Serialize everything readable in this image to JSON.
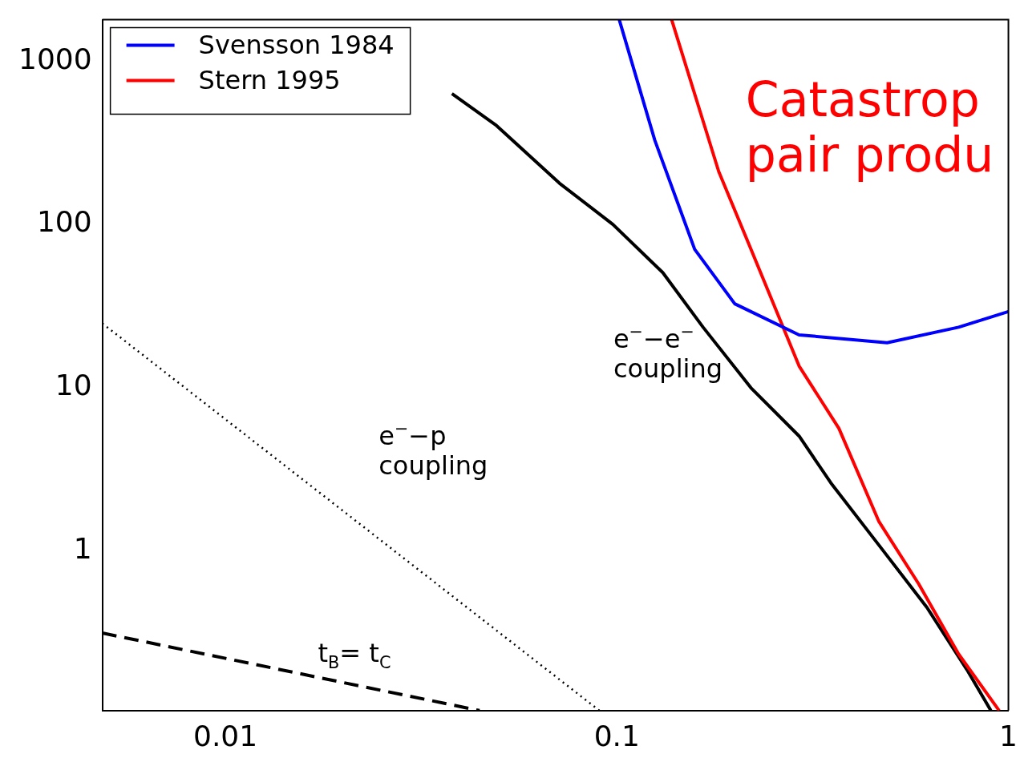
{
  "chart_data": {
    "type": "line",
    "log": "xy",
    "xlim": [
      0.00485,
      1.0
    ],
    "ylim": [
      0.106,
      1790
    ],
    "xticks": [
      0.01,
      0.1,
      1
    ],
    "yticks": [
      1,
      10,
      100,
      1000
    ],
    "grid": false,
    "legend": "top left",
    "marker": "none",
    "series": [
      {
        "name": "Svensson 1984",
        "color": "#0000ff",
        "x": [
          0.1014,
          0.125,
          0.158,
          0.2,
          0.292,
          0.49,
          0.746,
          1.0
        ],
        "values": [
          1790,
          327,
          70.5,
          32.7,
          21.1,
          18.9,
          23.5,
          29.3
        ]
      },
      {
        "name": "Stern 1995",
        "color": "#ff0000",
        "x": [
          0.138,
          0.182,
          0.22,
          0.292,
          0.369,
          0.467,
          0.59,
          0.746,
          0.947
        ],
        "values": [
          1790,
          211,
          70.5,
          13.6,
          5.65,
          1.52,
          0.631,
          0.235,
          0.106
        ]
      },
      {
        "color": "#000000",
        "line_style": "solid",
        "x": [
          0.0379,
          0.049,
          0.0713,
          0.0977,
          0.131,
          0.166,
          0.22,
          0.292,
          0.352,
          0.467,
          0.619,
          0.783,
          0.902
        ],
        "values": [
          631,
          407,
          179,
          100,
          50.7,
          23.5,
          10,
          5.07,
          2.62,
          1.09,
          0.454,
          0.189,
          0.106
        ]
      },
      {
        "color": "#000000",
        "line_style": "dotted",
        "x": [
          0.00485,
          0.0902
        ],
        "values": [
          24.8,
          0.106
        ]
      },
      {
        "color": "#000000",
        "line_style": "dashed",
        "x": [
          0.00485,
          0.0446
        ],
        "values": [
          0.316,
          0.106
        ]
      }
    ],
    "annotations": [
      "e$^{−}$−e$^{−}$\ncoupling",
      "e$^{−}$−p\ncoupling",
      "t$_{B}$= t$_{C}$",
      "Catastrop\npair produ"
    ]
  }
}
